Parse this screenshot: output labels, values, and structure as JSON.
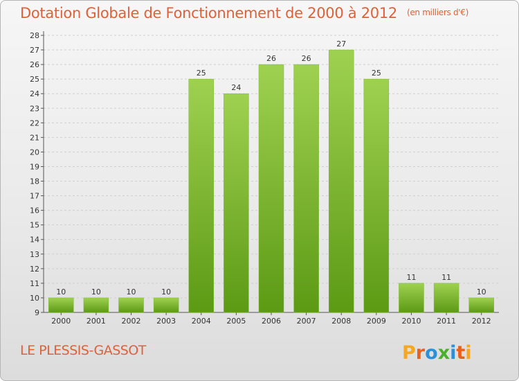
{
  "header": {
    "title": "Dotation Globale de Fonctionnement de 2000 à 2012",
    "unit": "(en milliers d'€)"
  },
  "footer": {
    "commune": "LE PLESSIS-GASSOT",
    "logo_text": "Proxiti"
  },
  "colors": {
    "title": "#e0603a",
    "bar_top": "#9fd151",
    "bar_bottom": "#5c9a14",
    "logo_letters": [
      "#f5a623",
      "#e8611a",
      "#2d8fd5",
      "#4cae2c",
      "#2d8fd5",
      "#e8611a",
      "#f5a623"
    ]
  },
  "chart_data": {
    "type": "bar",
    "categories": [
      "2000",
      "2001",
      "2002",
      "2003",
      "2004",
      "2005",
      "2006",
      "2007",
      "2008",
      "2009",
      "2010",
      "2011",
      "2012"
    ],
    "values": [
      10,
      10,
      10,
      10,
      25,
      24,
      26,
      26,
      27,
      25,
      11,
      11,
      10
    ],
    "ylim": [
      9,
      28
    ],
    "yticks": [
      9,
      10,
      11,
      12,
      13,
      14,
      15,
      16,
      17,
      18,
      19,
      20,
      21,
      22,
      23,
      24,
      25,
      26,
      27,
      28
    ],
    "grid": true,
    "data_labels": true
  }
}
